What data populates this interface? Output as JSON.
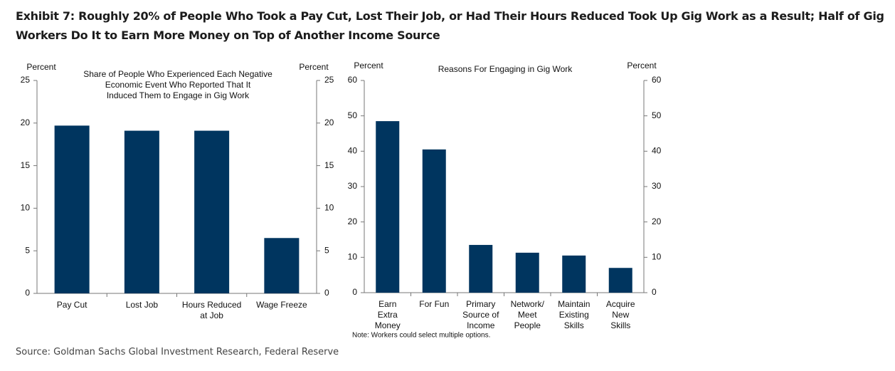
{
  "title": "Exhibit 7: Roughly 20% of People Who Took a Pay Cut, Lost Their Job, or Had Their Hours Reduced Took Up Gig Work as a Result; Half of Gig Workers Do It to Earn More Money on Top of Another Income Source",
  "source": "Source: Goldman Sachs Global Investment Research, Federal Reserve",
  "chart_data": [
    {
      "type": "bar",
      "title": "Share of People Who Experienced Each Negative\nEconomic Event Who Reported That It\nInduced Them to Engage in Gig Work",
      "ylabel": "Percent",
      "y2label": "Percent",
      "categories": [
        "Pay Cut",
        "Lost Job",
        "Hours Reduced\nat Job",
        "Wage Freeze"
      ],
      "values": [
        19.7,
        19.1,
        19.1,
        6.5
      ],
      "color": "#00355f",
      "ylim": [
        0,
        25
      ],
      "yticks": [
        0,
        5,
        10,
        15,
        20,
        25
      ],
      "y2lim": [
        0,
        25
      ],
      "y2ticks": [
        0,
        5,
        10,
        15,
        20,
        25
      ]
    },
    {
      "type": "bar",
      "title": "Reasons For Engaging in Gig Work",
      "ylabel": "Percent",
      "y2label": "Percent",
      "categories": [
        "Earn\nExtra\nMoney",
        "For Fun",
        "Primary\nSource of\nIncome",
        "Network/\nMeet\nPeople",
        "Maintain\nExisting\nSkills",
        "Acquire\nNew\nSkills"
      ],
      "values": [
        48.5,
        40.5,
        13.5,
        11.3,
        10.5,
        7
      ],
      "color": "#00355f",
      "ylim": [
        0,
        60
      ],
      "yticks": [
        0,
        10,
        20,
        30,
        40,
        50,
        60
      ],
      "y2lim": [
        0,
        60
      ],
      "y2ticks": [
        0,
        10,
        20,
        30,
        40,
        50,
        60
      ],
      "note": "Note: Workers could select multiple options."
    }
  ]
}
